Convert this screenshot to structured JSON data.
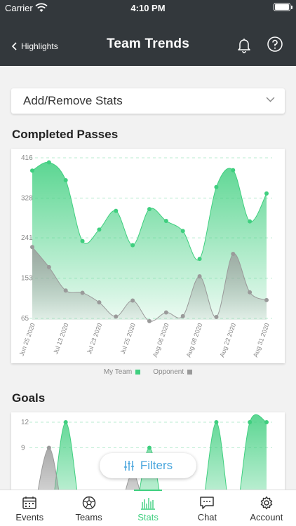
{
  "status": {
    "carrier": "Carrier",
    "time": "4:10 PM"
  },
  "header": {
    "back_label": "Highlights",
    "title": "Team Trends"
  },
  "stats_dropdown": {
    "label": "Add/Remove Stats"
  },
  "sections": {
    "passes_title": "Completed Passes",
    "goals_title": "Goals"
  },
  "legend": {
    "my_team": "My Team",
    "opponent": "Opponent"
  },
  "colors": {
    "my_team": "#3fcf7f",
    "opponent": "#9a9a9a",
    "header_bg": "#33383c",
    "accent_blue": "#4aa6dd"
  },
  "filters_button": {
    "label": "Filters",
    "icon": "sliders-icon"
  },
  "tabs": [
    {
      "label": "Events",
      "icon": "calendar-icon"
    },
    {
      "label": "Teams",
      "icon": "soccer-ball-icon"
    },
    {
      "label": "Stats",
      "icon": "bar-chart-icon",
      "active": true
    },
    {
      "label": "Chat",
      "icon": "chat-icon"
    },
    {
      "label": "Account",
      "icon": "gear-icon"
    }
  ],
  "chart_data": [
    {
      "type": "area",
      "title": "Completed Passes",
      "yticks": [
        "416",
        "328",
        "241",
        "153",
        "65"
      ],
      "ylim": [
        65,
        416
      ],
      "x_tick_labels": [
        "Jun 25 2020",
        "Jul 13 2020",
        "Jul 23 2020",
        "Jul 25 2020",
        "Aug 06 2020",
        "Aug 08 2020",
        "Aug 22 2020",
        "Aug 31 2020"
      ],
      "series": [
        {
          "name": "My Team",
          "values": [
            388,
            406,
            367,
            234,
            259,
            300,
            225,
            304,
            278,
            256,
            195,
            352,
            389,
            277,
            338
          ]
        },
        {
          "name": "Opponent",
          "values": [
            221,
            177,
            126,
            121,
            100,
            69,
            104,
            59,
            78,
            70,
            157,
            68,
            206,
            122,
            105
          ]
        }
      ],
      "grid": true,
      "legend": "bottom"
    },
    {
      "type": "area",
      "title": "Goals",
      "yticks": [
        "12",
        "9"
      ],
      "ylim": [
        0,
        12
      ],
      "series": [
        {
          "name": "My Team",
          "values": [
            0,
            0,
            12,
            0,
            0,
            0,
            0,
            9,
            0,
            0,
            0,
            12,
            0,
            12,
            12
          ]
        },
        {
          "name": "Opponent",
          "values": [
            0,
            9,
            0,
            0,
            0,
            0,
            6,
            0,
            0,
            0,
            0,
            0,
            0,
            0,
            0
          ]
        }
      ],
      "grid": true
    }
  ]
}
